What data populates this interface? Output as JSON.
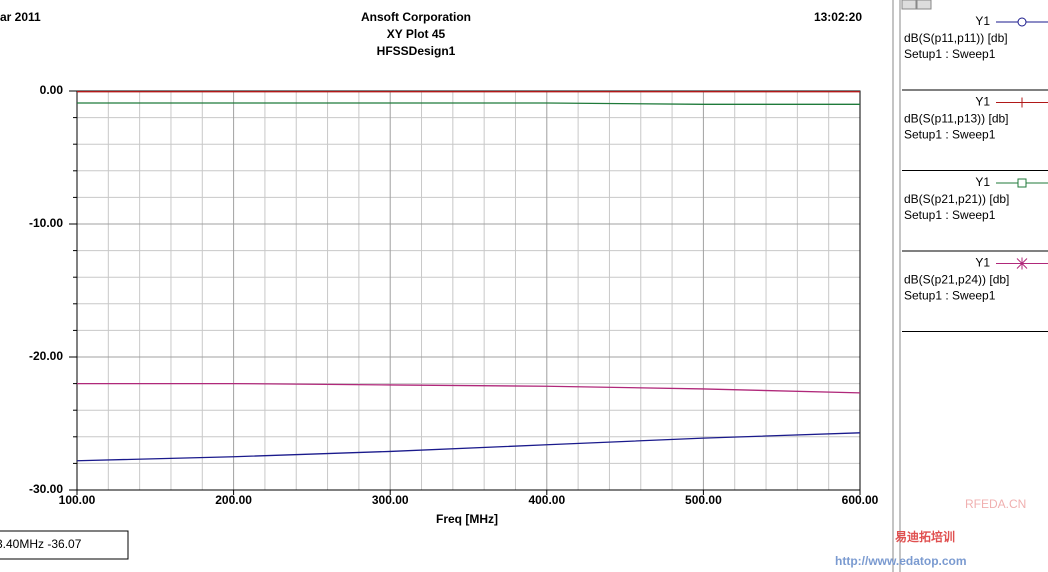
{
  "chart_data": {
    "type": "line",
    "date": "ar 2011",
    "title": "Ansoft Corporation",
    "subtitle": "XY Plot 45",
    "design": "HFSSDesign1",
    "time": "13:02:20",
    "x_label": "Freq [MHz]",
    "x": [
      100,
      200,
      300,
      400,
      500,
      600
    ],
    "xlim": [
      100,
      600
    ],
    "xticks": [
      {
        "value": 100,
        "label": "100.00"
      },
      {
        "value": 200,
        "label": "200.00"
      },
      {
        "value": 300,
        "label": "300.00"
      },
      {
        "value": 400,
        "label": "400.00"
      },
      {
        "value": 500,
        "label": "500.00"
      },
      {
        "value": 600,
        "label": "600.00"
      }
    ],
    "xminorticks": [
      120,
      140,
      160,
      180,
      220,
      240,
      260,
      280,
      320,
      340,
      360,
      380,
      420,
      440,
      460,
      480,
      520,
      540,
      560,
      580
    ],
    "ylim": [
      -30,
      0
    ],
    "yticks": [
      {
        "value": 0,
        "label": "0.00"
      },
      {
        "value": -10,
        "label": "-10.00"
      },
      {
        "value": -20,
        "label": "-20.00"
      },
      {
        "value": -30,
        "label": "-30.00"
      }
    ],
    "yminorticks": [
      -2,
      -4,
      -6,
      -8,
      -12,
      -14,
      -16,
      -18,
      -22,
      -24,
      -26,
      -28
    ],
    "grid": true,
    "series": [
      {
        "name": "dB(S(p11,p11)) [db]",
        "axis": "Y1",
        "setup": "Setup1 : Sweep1",
        "marker": "circle",
        "color": "#1a1a8c",
        "values": [
          -27.8,
          -27.5,
          -27.1,
          -26.6,
          -26.1,
          -25.7
        ]
      },
      {
        "name": "dB(S(p11,p13)) [db]",
        "axis": "Y1",
        "setup": "Setup1 : Sweep1",
        "marker": "plus",
        "color": "#b01818",
        "values": [
          -0.05,
          -0.05,
          -0.05,
          -0.05,
          -0.05,
          -0.05
        ]
      },
      {
        "name": "dB(S(p21,p21)) [db]",
        "axis": "Y1",
        "setup": "Setup1 : Sweep1",
        "marker": "square",
        "color": "#1f7a3a",
        "values": [
          -0.9,
          -0.9,
          -0.9,
          -0.9,
          -1.0,
          -1.0
        ]
      },
      {
        "name": "dB(S(p21,p24)) [db]",
        "axis": "Y1",
        "setup": "Setup1 : Sweep1",
        "marker": "star",
        "color": "#b0287a",
        "values": [
          -22.0,
          -22.0,
          -22.1,
          -22.2,
          -22.4,
          -22.7
        ]
      }
    ],
    "readout": "3.40MHz -36.07",
    "watermark": [
      "RFEDA.CN",
      "易迪拓培训",
      "http://www.edatop.com"
    ]
  }
}
